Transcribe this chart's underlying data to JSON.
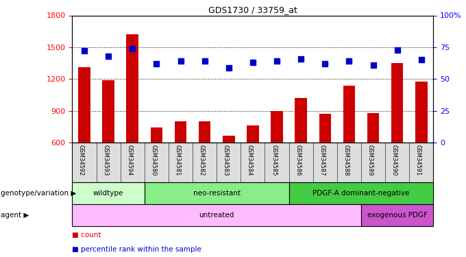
{
  "title": "GDS1730 / 33759_at",
  "samples": [
    "GSM34592",
    "GSM34593",
    "GSM34594",
    "GSM34580",
    "GSM34581",
    "GSM34582",
    "GSM34583",
    "GSM34584",
    "GSM34585",
    "GSM34586",
    "GSM34587",
    "GSM34588",
    "GSM34589",
    "GSM34590",
    "GSM34591"
  ],
  "counts": [
    1310,
    1190,
    1620,
    745,
    800,
    800,
    665,
    760,
    900,
    1020,
    870,
    1140,
    880,
    1350,
    1175
  ],
  "percentiles": [
    72,
    68,
    74,
    62,
    64,
    64,
    59,
    63,
    64,
    66,
    62,
    64,
    61,
    73,
    65
  ],
  "ylim_left": [
    600,
    1800
  ],
  "ylim_right": [
    0,
    100
  ],
  "yticks_left": [
    600,
    900,
    1200,
    1500,
    1800
  ],
  "yticks_right": [
    0,
    25,
    50,
    75,
    100
  ],
  "bar_color": "#cc0000",
  "dot_color": "#0000cc",
  "bar_width": 0.5,
  "dot_size": 35,
  "genotype_groups": [
    {
      "label": "wildtype",
      "start": 0,
      "end": 3,
      "color": "#ccffcc"
    },
    {
      "label": "neo-resistant",
      "start": 3,
      "end": 9,
      "color": "#88ee88"
    },
    {
      "label": "PDGF-A dominant-negative",
      "start": 9,
      "end": 15,
      "color": "#44cc44"
    }
  ],
  "agent_groups": [
    {
      "label": "untreated",
      "start": 0,
      "end": 12,
      "color": "#ffbbff"
    },
    {
      "label": "exogenous PDGF",
      "start": 12,
      "end": 15,
      "color": "#cc55cc"
    }
  ],
  "left_labels": [
    {
      "text": "genotype/variation ▶",
      "row": "geno"
    },
    {
      "text": "agent ▶",
      "row": "agent"
    }
  ]
}
